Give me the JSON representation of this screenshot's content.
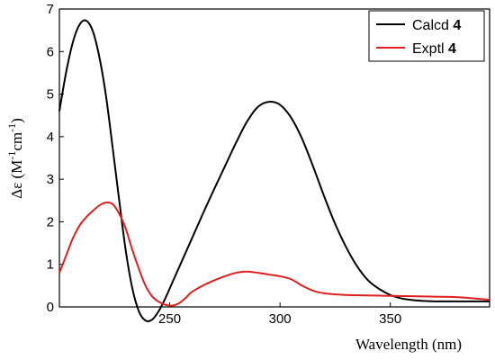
{
  "chart_data": {
    "type": "line",
    "title": "",
    "xlabel": "Wavelength (nm)",
    "ylabel": {
      "prefix": "Δε (M",
      "sup1": "-1",
      "mid": "cm",
      "sup2": "-1",
      "suffix": ")"
    },
    "xlim": [
      200,
      395
    ],
    "ylim": [
      0,
      7
    ],
    "x_ticks": [
      250,
      300,
      350
    ],
    "y_ticks": [
      0,
      1,
      2,
      3,
      4,
      5,
      6,
      7
    ],
    "grid": false,
    "legend_position": "top-right",
    "series": [
      {
        "name": "Calcd",
        "name_bold": "4",
        "color": "#000000",
        "x": [
          200,
          203,
          206,
          209,
          212,
          215,
          218,
          221,
          224,
          227,
          230,
          233,
          236,
          239,
          242,
          245,
          248,
          251,
          254,
          257,
          260,
          263,
          266,
          270,
          275,
          280,
          285,
          290,
          295,
          300,
          305,
          310,
          315,
          320,
          325,
          330,
          335,
          340,
          345,
          350,
          355,
          360,
          365,
          370,
          375,
          380,
          385,
          390,
          395
        ],
        "y": [
          4.6,
          5.5,
          6.2,
          6.62,
          6.73,
          6.5,
          5.9,
          5.0,
          3.8,
          2.55,
          1.35,
          0.45,
          -0.1,
          -0.32,
          -0.3,
          -0.1,
          0.2,
          0.55,
          0.9,
          1.25,
          1.6,
          1.95,
          2.3,
          2.75,
          3.3,
          3.85,
          4.35,
          4.7,
          4.82,
          4.75,
          4.45,
          3.95,
          3.3,
          2.6,
          1.95,
          1.4,
          0.95,
          0.62,
          0.42,
          0.28,
          0.2,
          0.16,
          0.14,
          0.13,
          0.13,
          0.13,
          0.13,
          0.13,
          0.13
        ]
      },
      {
        "name": "Exptl",
        "name_bold": "4",
        "color": "#e02020",
        "x": [
          200,
          203,
          206,
          209,
          212,
          215,
          218,
          221,
          224,
          227,
          230,
          233,
          236,
          239,
          242,
          245,
          248,
          251,
          254,
          257,
          260,
          265,
          270,
          275,
          280,
          285,
          290,
          295,
          300,
          305,
          310,
          315,
          320,
          330,
          340,
          350,
          360,
          370,
          380,
          390,
          395
        ],
        "y": [
          0.8,
          1.2,
          1.6,
          1.9,
          2.1,
          2.25,
          2.38,
          2.45,
          2.42,
          2.2,
          1.85,
          1.35,
          0.9,
          0.5,
          0.25,
          0.12,
          0.05,
          0.03,
          0.08,
          0.2,
          0.35,
          0.5,
          0.62,
          0.72,
          0.8,
          0.83,
          0.8,
          0.76,
          0.72,
          0.65,
          0.5,
          0.38,
          0.32,
          0.28,
          0.27,
          0.26,
          0.25,
          0.24,
          0.23,
          0.19,
          0.17
        ]
      }
    ]
  }
}
